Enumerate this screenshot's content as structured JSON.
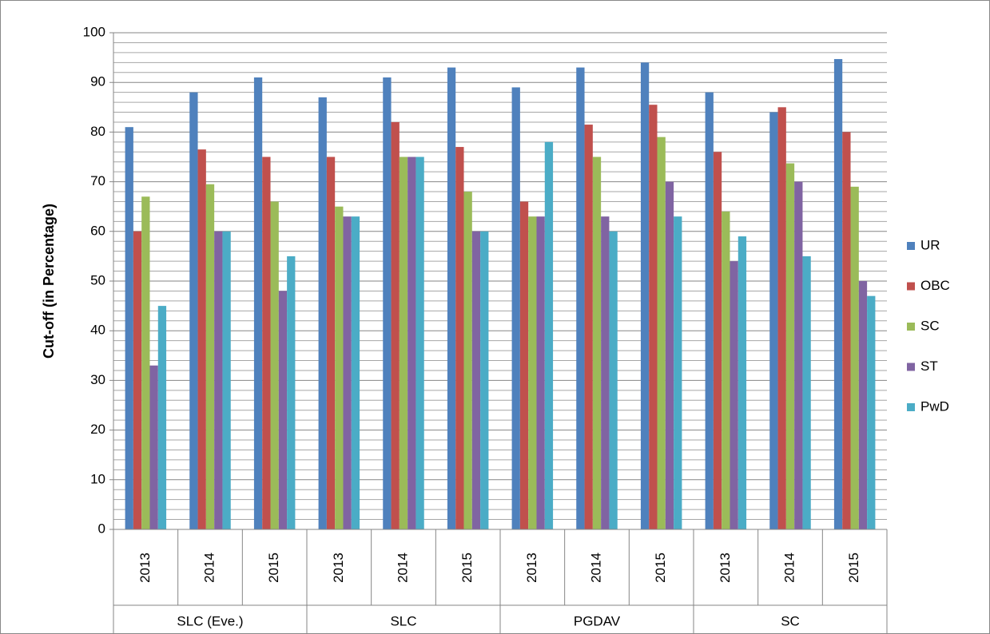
{
  "chart_data": {
    "type": "bar",
    "y_label": "Cut-off (in Percentage)",
    "categories": [
      "2013",
      "2014",
      "2015",
      "2013",
      "2014",
      "2015",
      "2013",
      "2014",
      "2015",
      "2013",
      "2014",
      "2015"
    ],
    "groups": [
      "SLC (Eve.)",
      "SLC",
      "PGDAV",
      "SC"
    ],
    "series": [
      {
        "name": "UR",
        "color": "#4f81bd",
        "values": [
          81,
          88,
          91,
          87,
          91,
          93,
          89,
          93,
          94,
          88,
          84,
          94.7
        ]
      },
      {
        "name": "OBC",
        "color": "#c0504d",
        "values": [
          60,
          76.5,
          75,
          75,
          82,
          77,
          66,
          81.5,
          85.5,
          76,
          85,
          80
        ]
      },
      {
        "name": "SC",
        "color": "#9bbb59",
        "values": [
          67,
          69.5,
          66,
          65,
          75,
          68,
          63,
          75,
          79,
          64,
          73.7,
          69
        ]
      },
      {
        "name": "ST",
        "color": "#8064a2",
        "values": [
          33,
          60,
          48,
          63,
          75,
          60,
          63,
          63,
          70,
          54,
          70,
          50
        ]
      },
      {
        "name": "PwD",
        "color": "#4bacc6",
        "values": [
          45,
          60,
          55,
          63,
          75,
          60,
          78,
          60,
          63,
          59,
          55,
          47
        ]
      }
    ],
    "ylim": [
      0,
      100
    ],
    "yticks": [
      0,
      10,
      20,
      30,
      40,
      50,
      60,
      70,
      80,
      90,
      100
    ],
    "grid": true,
    "minor_grid": true,
    "legend": "right"
  }
}
